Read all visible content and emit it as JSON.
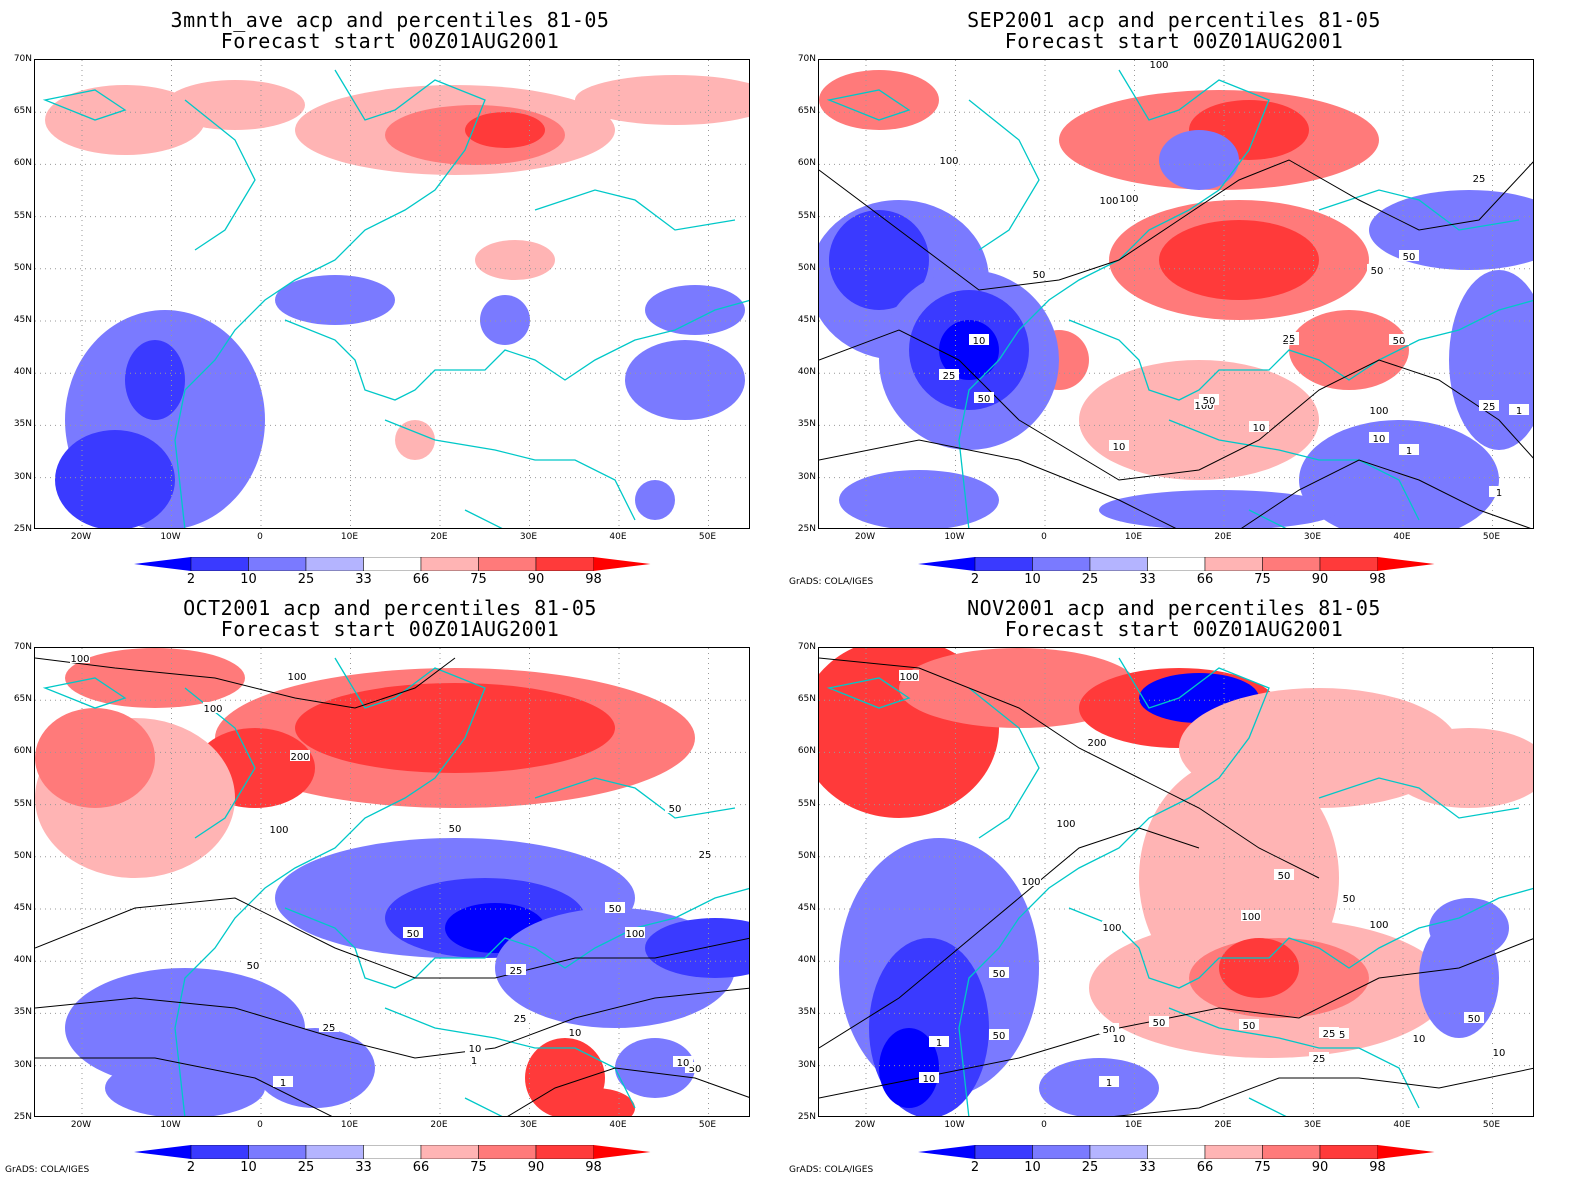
{
  "panels": [
    {
      "title_line1": "3mnth_ave acp and percentiles 81-05",
      "title_line2": "Forecast start 00Z01AUG2001",
      "credit": ""
    },
    {
      "title_line1": "SEP2001 acp and percentiles 81-05",
      "title_line2": "Forecast start 00Z01AUG2001",
      "credit": "GrADS: COLA/IGES"
    },
    {
      "title_line1": "OCT2001 acp and percentiles 81-05",
      "title_line2": "Forecast start 00Z01AUG2001",
      "credit": "GrADS: COLA/IGES"
    },
    {
      "title_line1": "NOV2001 acp and percentiles 81-05",
      "title_line2": "Forecast start 00Z01AUG2001",
      "credit": "GrADS: COLA/IGES"
    }
  ],
  "lat_labels": [
    "70N",
    "65N",
    "60N",
    "55N",
    "50N",
    "45N",
    "40N",
    "35N",
    "30N",
    "25N"
  ],
  "lon_labels": [
    "20W",
    "10W",
    "0",
    "10E",
    "20E",
    "30E",
    "40E",
    "50E"
  ],
  "colorbar": {
    "labels": [
      "2",
      "10",
      "25",
      "33",
      "66",
      "75",
      "90",
      "98"
    ],
    "colors": [
      "#0000ff",
      "#3a3aff",
      "#7a7aff",
      "#b4b4ff",
      "#ffffff",
      "#ffb4b4",
      "#ff7a7a",
      "#ff3a3a",
      "#ff0000"
    ]
  },
  "contour_labels": {
    "sep": [
      "100",
      "100",
      "100",
      "100",
      "50",
      "50",
      "50",
      "25",
      "10",
      "25",
      "50",
      "100",
      "100",
      "25",
      "10",
      "50",
      "50",
      "25",
      "1",
      "1",
      "25",
      "10",
      "1",
      "10"
    ],
    "oct": [
      "100",
      "100",
      "100",
      "200",
      "100",
      "50",
      "50",
      "25",
      "50",
      "100",
      "50",
      "50",
      "25",
      "25",
      "50",
      "25",
      "10",
      "10",
      "1",
      "10",
      "1"
    ],
    "nov": [
      "100",
      "200",
      "100",
      "50",
      "100",
      "100",
      "100",
      "50",
      "50",
      "100",
      "50",
      "50",
      "25",
      "10",
      "50",
      "50",
      "25",
      "10",
      "1",
      "10",
      "1",
      "25",
      "10",
      "50"
    ]
  }
}
